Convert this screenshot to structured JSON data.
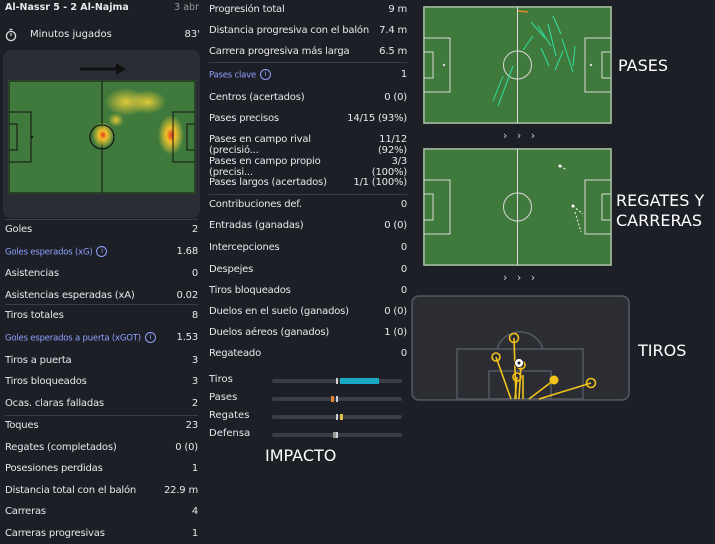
{
  "match": {
    "title": "Al-Nassr 5 - 2 Al-Najma",
    "date": "3 abr"
  },
  "minutes": {
    "label": "Minutos jugados",
    "value": "83'"
  },
  "left_stats": [
    {
      "label": "Goles",
      "value": "2",
      "link": false
    },
    {
      "label": "Goles esperados (xG)",
      "value": "1.68",
      "link": true
    },
    {
      "label": "Asistencias",
      "value": "0",
      "link": false
    },
    {
      "label": "Asistencias esperadas (xA)",
      "value": "0.02",
      "link": false
    },
    {
      "label": "Tiros totales",
      "value": "8",
      "link": false
    },
    {
      "label": "Goles esperados a puerta (xGOT)",
      "value": "1.53",
      "link": true
    },
    {
      "label": "Tiros a puerta",
      "value": "3",
      "link": false
    },
    {
      "label": "Tiros bloqueados",
      "value": "3",
      "link": false
    },
    {
      "label": "Ocas. claras falladas",
      "value": "2",
      "link": false
    },
    {
      "label": "Toques",
      "value": "23",
      "link": false
    },
    {
      "label": "Regates (completados)",
      "value": "0 (0)",
      "link": false
    },
    {
      "label": "Posesiones perdidas",
      "value": "1",
      "link": false
    },
    {
      "label": "Distancia total con el balón",
      "value": "22.9 m",
      "link": false
    },
    {
      "label": "Carreras",
      "value": "4",
      "link": false
    },
    {
      "label": "Carreras progresivas",
      "value": "1",
      "link": false
    }
  ],
  "mid_stats": [
    {
      "label": "Progresión total",
      "value": "9 m",
      "link": false
    },
    {
      "label": "Distancia progresiva con el balón",
      "value": "7.4 m",
      "link": false
    },
    {
      "label": "Carrera progresiva más larga",
      "value": "6.5 m",
      "link": false
    },
    {
      "label": "Pases clave",
      "value": "1",
      "link": true
    },
    {
      "label": "Centros (acertados)",
      "value": "0 (0)",
      "link": false
    },
    {
      "label": "Pases precisos",
      "value": "14/15 (93%)",
      "link": false
    },
    {
      "label": "Pases en campo rival (precisió...",
      "value": "11/12 (92%)",
      "link": false
    },
    {
      "label": "Pases en campo propio (precisi...",
      "value": "3/3 (100%)",
      "link": false
    },
    {
      "label": "Pases largos (acertados)",
      "value": "1/1 (100%)",
      "link": false
    },
    {
      "label": "Contribuciones def.",
      "value": "0",
      "link": false
    },
    {
      "label": "Entradas (ganadas)",
      "value": "0 (0)",
      "link": false
    },
    {
      "label": "Intercepciones",
      "value": "0",
      "link": false
    },
    {
      "label": "Despejes",
      "value": "0",
      "link": false
    },
    {
      "label": "Tiros bloqueados",
      "value": "0",
      "link": false
    },
    {
      "label": "Duelos en el suelo (ganados)",
      "value": "0 (0)",
      "link": false
    },
    {
      "label": "Duelos aéreos (ganados)",
      "value": "1 (0)",
      "link": false
    },
    {
      "label": "Regateado",
      "value": "0",
      "link": false
    }
  ],
  "impact": {
    "title": "IMPACTO",
    "rows": [
      {
        "label": "Tiros",
        "level": 0.75,
        "color": "#18a9c4"
      },
      {
        "label": "Pases",
        "level": 0.05,
        "color": "#e0832a"
      },
      {
        "label": "Regates",
        "level": 0.05,
        "color": "#e0c040"
      },
      {
        "label": "Defensa",
        "level": 0.0,
        "color": "#e0832a"
      }
    ]
  },
  "sections": {
    "passes": "PASES",
    "dribbles_line1": "REGATES Y",
    "dribbles_line2": "CARRERAS",
    "shots": "TIROS"
  },
  "chevrons": "› › ›",
  "colors": {
    "pitch": "#3f7a3c",
    "accent": "#8ea0ff",
    "bg": "#1d1f26",
    "shot": "#f2c31b"
  }
}
